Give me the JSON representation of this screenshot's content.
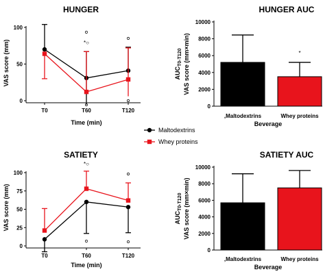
{
  "chart_data": [
    {
      "type": "line",
      "title": "HUNGER",
      "xlabel": "Time (min)",
      "ylabel": "VAS score (mm)",
      "categories": [
        "T0",
        "T60",
        "T120"
      ],
      "ylim": [
        0,
        100
      ],
      "yticks": [
        "0",
        "50",
        "100"
      ],
      "series": [
        {
          "name": "Maltodextrins",
          "color": "#000000",
          "values": [
            70,
            31,
            41
          ],
          "errors": [
            34,
            36,
            32
          ]
        },
        {
          "name": "Whey proteins",
          "color": "#e8141c",
          "values": [
            64,
            12,
            29
          ],
          "errors": [
            34,
            55,
            43
          ]
        }
      ],
      "annotations": [
        {
          "category": "T60",
          "text": "*○"
        }
      ]
    },
    {
      "type": "bar",
      "title": "HUNGER AUC",
      "xlabel": "Beverage",
      "ylabel_main": "AUC",
      "ylabel_sub": "T0-T120",
      "ylabel2": "VAS score (mm×min)",
      "categories": [
        ",Maltodextrins",
        "Whey proteins"
      ],
      "values": [
        5200,
        3500
      ],
      "errors": [
        3250,
        1700
      ],
      "colors": [
        "#000000",
        "#e8141c"
      ],
      "ylim": [
        0,
        10000
      ],
      "yticks": [
        "0",
        "2000",
        "4000",
        "6000",
        "8000",
        "10000"
      ],
      "annotations": [
        {
          "category": "Whey proteins",
          "text": "*"
        }
      ]
    },
    {
      "type": "line",
      "title": "SATIETY",
      "xlabel": "Time (min)",
      "ylabel": "VAS score (mm)",
      "categories": [
        "T0",
        "T60",
        "T120"
      ],
      "ylim": [
        0,
        100
      ],
      "yticks": [
        "0",
        "25",
        "50",
        "75",
        "100"
      ],
      "series": [
        {
          "name": "Maltodextrins",
          "color": "#000000",
          "values": [
            9,
            60,
            53
          ],
          "errors": [
            17,
            43,
            35
          ]
        },
        {
          "name": "Whey proteins",
          "color": "#e8141c",
          "values": [
            21,
            78,
            62
          ],
          "errors": [
            30,
            24,
            24
          ]
        }
      ],
      "annotations": [
        {
          "category": "T60",
          "text": "*○"
        }
      ]
    },
    {
      "type": "bar",
      "title": "SATIETY AUC",
      "xlabel": "Beverage",
      "ylabel_main": "AUC",
      "ylabel_sub": "T0-T120",
      "ylabel2": "VAS score (mm×min)",
      "categories": [
        ",Maltodextrins",
        "Whey proteins"
      ],
      "values": [
        5700,
        7500
      ],
      "errors": [
        3500,
        2100
      ],
      "colors": [
        "#000000",
        "#e8141c"
      ],
      "ylim": [
        0,
        10000
      ],
      "yticks": [
        "0",
        "2000",
        "4000",
        "6000",
        "8000",
        "10000"
      ]
    }
  ],
  "legend": {
    "entries": [
      {
        "label": "Maltodextrins",
        "color": "#000000",
        "marker": "circle"
      },
      {
        "label": "Whey proteins",
        "color": "#e8141c",
        "marker": "square"
      }
    ]
  }
}
